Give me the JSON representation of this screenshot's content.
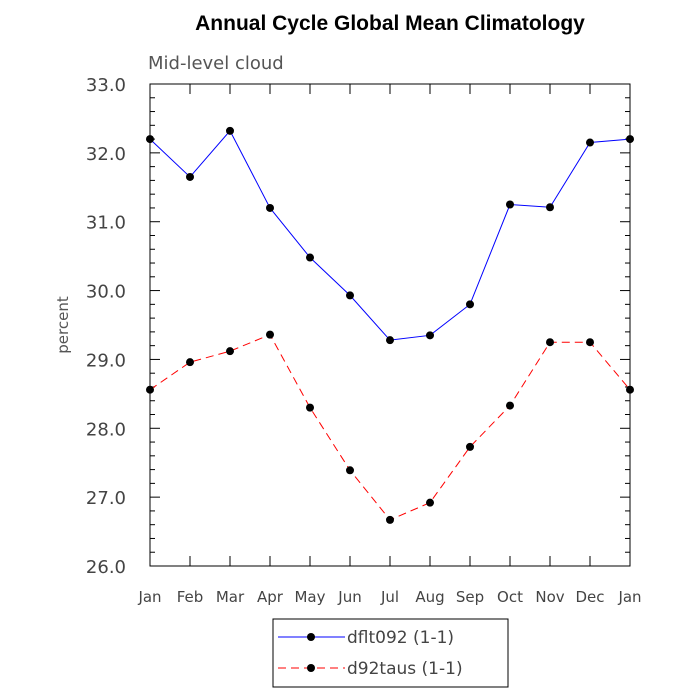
{
  "chart_data": {
    "type": "line",
    "title": "Annual Cycle Global Mean Climatology",
    "subtitle": "Mid-level cloud",
    "xlabel": "",
    "ylabel": "percent",
    "ylim": [
      26.0,
      33.0
    ],
    "yticks": [
      "26.0",
      "27.0",
      "28.0",
      "29.0",
      "30.0",
      "31.0",
      "32.0",
      "33.0"
    ],
    "categories": [
      "Jan",
      "Feb",
      "Mar",
      "Apr",
      "May",
      "Jun",
      "Jul",
      "Aug",
      "Sep",
      "Oct",
      "Nov",
      "Dec",
      "Jan"
    ],
    "grid": false,
    "legend_position": "bottom-center",
    "series": [
      {
        "name": "dflt092 (1-1)",
        "color": "#0000ff",
        "line_style": "solid",
        "values": [
          32.2,
          31.65,
          32.32,
          31.2,
          30.48,
          29.93,
          29.28,
          29.35,
          29.8,
          31.25,
          31.21,
          32.15,
          32.2
        ]
      },
      {
        "name": "d92taus (1-1)",
        "color": "#ff0000",
        "line_style": "dashed",
        "values": [
          28.56,
          28.96,
          29.12,
          29.36,
          28.3,
          27.39,
          26.67,
          26.92,
          27.73,
          28.33,
          29.25,
          29.25,
          28.56
        ]
      }
    ]
  }
}
